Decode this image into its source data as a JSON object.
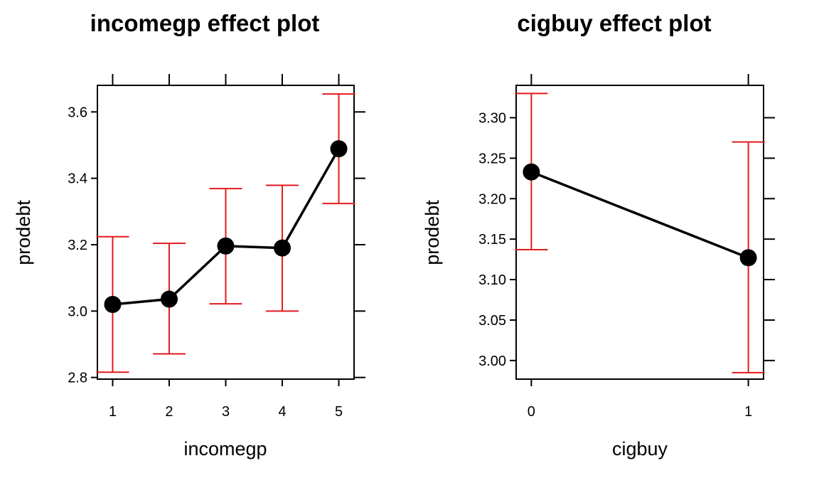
{
  "chart_data": [
    {
      "type": "line",
      "title": "incomegp effect plot",
      "xlabel": "incomegp",
      "ylabel": "prodebt",
      "categories": [
        "1",
        "2",
        "3",
        "4",
        "5"
      ],
      "xlim": [
        0.73,
        5.27
      ],
      "ylim": [
        2.795,
        3.68
      ],
      "yticks": [
        "2.8",
        "3.0",
        "3.2",
        "3.4",
        "3.6"
      ],
      "ytick_values": [
        2.8,
        3.0,
        3.2,
        3.4,
        3.6
      ],
      "series": [
        {
          "x": [
            1,
            2,
            3,
            4,
            5
          ],
          "values": [
            3.02,
            3.036,
            3.196,
            3.19,
            3.489
          ],
          "lower": [
            2.816,
            2.871,
            3.022,
            3.0,
            3.324
          ],
          "upper": [
            3.224,
            3.204,
            3.369,
            3.379,
            3.654
          ]
        }
      ],
      "colors": {
        "line": "#000000",
        "errorbar": "#e31a1c"
      },
      "grid": false
    },
    {
      "type": "line",
      "title": "cigbuy effect plot",
      "xlabel": "cigbuy",
      "ylabel": "prodebt",
      "categories": [
        "0",
        "1"
      ],
      "xlim": [
        -0.07,
        1.07
      ],
      "ylim": [
        2.977,
        3.34
      ],
      "yticks": [
        "3.00",
        "3.05",
        "3.10",
        "3.15",
        "3.20",
        "3.25",
        "3.30"
      ],
      "ytick_values": [
        3.0,
        3.05,
        3.1,
        3.15,
        3.2,
        3.25,
        3.3
      ],
      "series": [
        {
          "x": [
            0,
            1
          ],
          "values": [
            3.233,
            3.127
          ],
          "lower": [
            3.137,
            2.985
          ],
          "upper": [
            3.33,
            3.27
          ]
        }
      ],
      "colors": {
        "line": "#000000",
        "errorbar": "#e31a1c"
      },
      "grid": false
    }
  ]
}
